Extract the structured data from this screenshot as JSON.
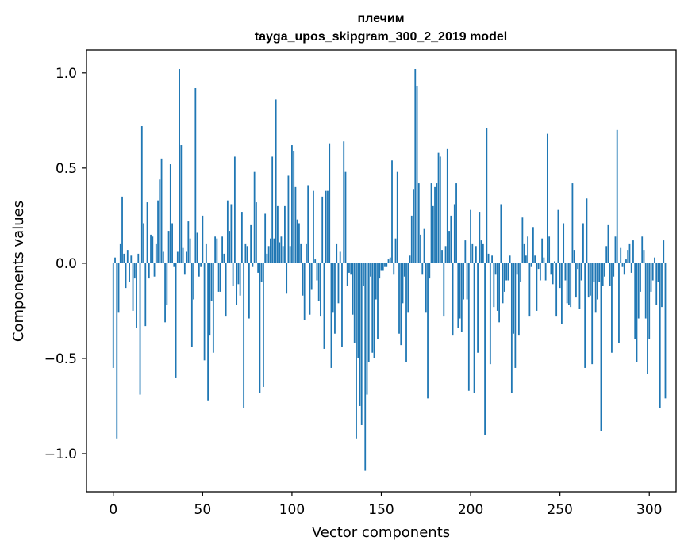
{
  "chart_data": {
    "type": "bar",
    "title_line1": "плечим",
    "title_line2": "tayga_upos_skipgram_300_2_2019 model",
    "xlabel": "Vector components",
    "ylabel": "Components values",
    "xlim": [
      -15,
      315
    ],
    "ylim": [
      -1.2,
      1.12
    ],
    "xticks": [
      0,
      50,
      100,
      150,
      200,
      250,
      300
    ],
    "xtick_labels": [
      "0",
      "50",
      "100",
      "150",
      "200",
      "250",
      "300"
    ],
    "yticks": [
      1.0,
      0.5,
      0.0,
      -0.5,
      -1.0
    ],
    "ytick_labels": [
      "1.0",
      "0.5",
      "0.0",
      "−0.5",
      "−1.0"
    ],
    "bar_color": "#1f77b4",
    "values": [
      -0.55,
      0.03,
      -0.92,
      -0.26,
      0.1,
      0.35,
      0.05,
      -0.13,
      0.07,
      -0.1,
      0.04,
      -0.25,
      -0.08,
      -0.34,
      0.05,
      -0.69,
      0.72,
      0.21,
      -0.33,
      0.32,
      -0.08,
      0.15,
      0.14,
      -0.07,
      0.1,
      0.33,
      0.44,
      0.55,
      0.06,
      -0.31,
      -0.22,
      0.17,
      0.52,
      0.21,
      -0.02,
      -0.6,
      0.06,
      1.02,
      0.62,
      0.08,
      -0.06,
      0.06,
      0.22,
      0.13,
      -0.44,
      -0.19,
      0.92,
      0.16,
      -0.07,
      -0.02,
      0.25,
      -0.51,
      0.1,
      -0.72,
      -0.38,
      -0.2,
      -0.47,
      0.14,
      0.13,
      -0.15,
      -0.15,
      0.14,
      0.05,
      -0.28,
      0.33,
      0.17,
      0.31,
      -0.12,
      0.56,
      -0.22,
      -0.11,
      -0.17,
      0.27,
      -0.76,
      0.1,
      0.09,
      -0.29,
      0.2,
      -0.02,
      0.48,
      0.32,
      -0.05,
      -0.68,
      -0.1,
      -0.65,
      0.26,
      0.05,
      0.09,
      0.13,
      0.56,
      0.13,
      0.86,
      0.3,
      0.11,
      0.14,
      0.09,
      0.3,
      -0.16,
      0.46,
      0.09,
      0.62,
      0.59,
      0.4,
      0.23,
      0.21,
      0.1,
      -0.17,
      -0.3,
      0.1,
      0.41,
      -0.27,
      -0.14,
      0.38,
      0.02,
      -0.09,
      -0.2,
      -0.28,
      0.35,
      -0.45,
      0.38,
      0.38,
      0.63,
      -0.55,
      -0.26,
      -0.37,
      0.1,
      -0.21,
      0.06,
      -0.44,
      0.64,
      0.48,
      -0.12,
      -0.05,
      -0.06,
      -0.27,
      -0.42,
      -0.92,
      -0.5,
      -0.75,
      -0.85,
      -0.12,
      -1.09,
      -0.69,
      -0.52,
      -0.07,
      -0.47,
      -0.5,
      -0.19,
      -0.4,
      -0.08,
      -0.04,
      -0.04,
      -0.02,
      -0.02,
      0.02,
      0.03,
      0.54,
      -0.06,
      0.13,
      0.48,
      -0.37,
      -0.43,
      -0.21,
      -0.07,
      -0.52,
      -0.26,
      0.04,
      0.25,
      0.39,
      1.02,
      0.93,
      0.42,
      0.15,
      -0.06,
      0.18,
      -0.26,
      -0.71,
      -0.08,
      0.42,
      0.3,
      0.4,
      0.42,
      0.58,
      0.56,
      0.07,
      -0.28,
      0.09,
      0.6,
      0.17,
      0.25,
      -0.38,
      0.31,
      0.42,
      -0.34,
      -0.29,
      -0.36,
      -0.19,
      0.12,
      -0.19,
      -0.67,
      0.28,
      0.1,
      -0.68,
      0.09,
      -0.47,
      0.27,
      0.12,
      0.1,
      -0.9,
      0.71,
      0.05,
      -0.53,
      0.04,
      -0.23,
      -0.06,
      -0.25,
      -0.31,
      0.31,
      -0.21,
      -0.15,
      -0.09,
      -0.09,
      0.04,
      -0.68,
      -0.37,
      -0.55,
      -0.06,
      -0.38,
      -0.1,
      0.24,
      0.1,
      0.04,
      0.14,
      -0.28,
      -0.02,
      0.19,
      0.04,
      -0.25,
      -0.03,
      -0.09,
      0.13,
      0.03,
      -0.09,
      0.68,
      0.14,
      -0.06,
      -0.11,
      0.01,
      -0.28,
      0.28,
      -0.13,
      -0.32,
      0.21,
      -0.09,
      -0.21,
      -0.22,
      -0.23,
      0.42,
      0.07,
      -0.18,
      -0.03,
      -0.24,
      -0.09,
      0.21,
      -0.55,
      0.34,
      -0.18,
      -0.17,
      -0.53,
      -0.1,
      -0.26,
      -0.19,
      -0.1,
      -0.88,
      -0.12,
      -0.07,
      0.09,
      0.2,
      -0.12,
      -0.47,
      -0.07,
      0.14,
      0.7,
      -0.42,
      0.08,
      -0.02,
      -0.06,
      0.02,
      0.07,
      0.1,
      -0.05,
      0.12,
      -0.4,
      -0.52,
      -0.29,
      -0.15,
      0.14,
      0.07,
      -0.29,
      -0.58,
      -0.4,
      -0.15,
      -0.09,
      0.03,
      -0.22,
      -0.1,
      -0.76,
      -0.23,
      0.12,
      -0.71
    ]
  }
}
